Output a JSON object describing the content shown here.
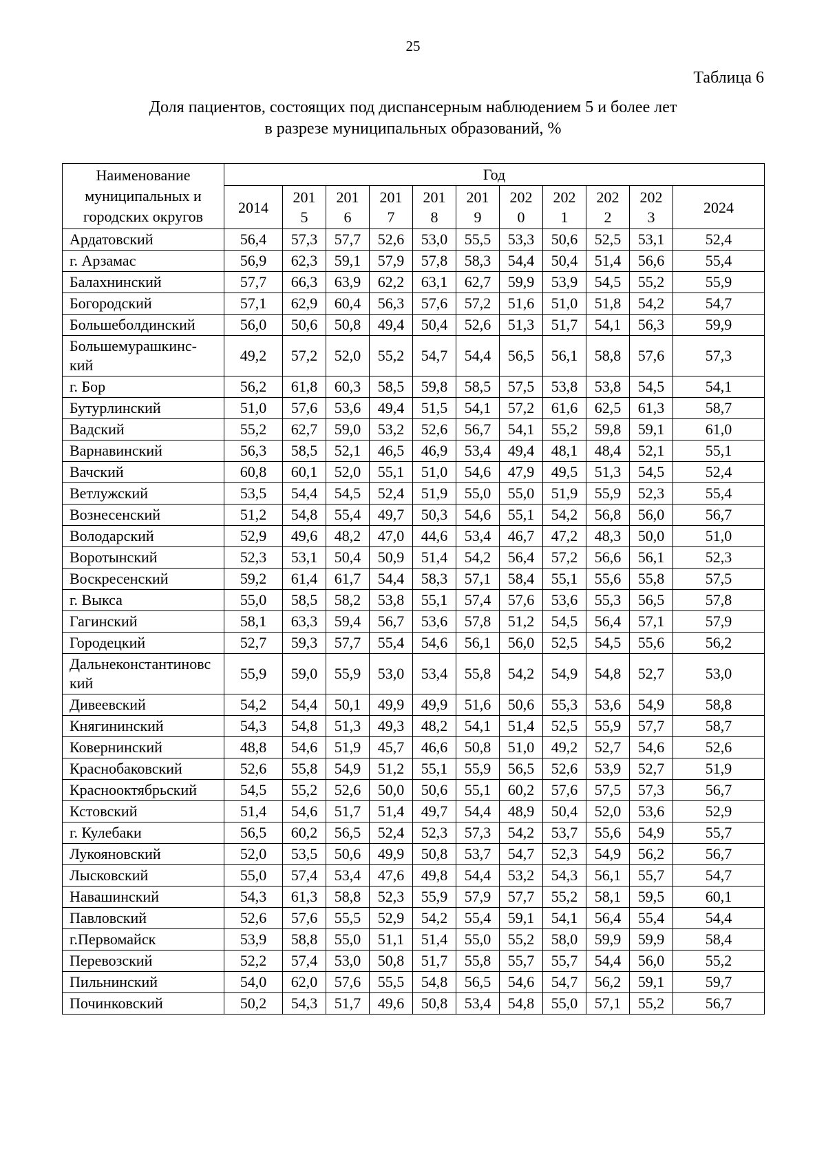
{
  "page": {
    "number": "25",
    "table_label": "Таблица 6",
    "title_line1": "Доля пациентов, состоящих под диспансерным наблюдением 5 и более лет",
    "title_line2": "в разрезе муниципальных образований, %"
  },
  "table": {
    "name_header": "Наименование\nмуниципальных и\nгородских округов",
    "year_header": "Год",
    "year_columns": [
      "2014",
      "201\n5",
      "201\n6",
      "201\n7",
      "201\n8",
      "201\n9",
      "202\n0",
      "202\n1",
      "202\n2",
      "202\n3",
      "2024"
    ],
    "rows": [
      {
        "name": "Ардатовский",
        "values": [
          "56,4",
          "57,3",
          "57,7",
          "52,6",
          "53,0",
          "55,5",
          "53,3",
          "50,6",
          "52,5",
          "53,1",
          "52,4"
        ]
      },
      {
        "name": "г. Арзамас",
        "values": [
          "56,9",
          "62,3",
          "59,1",
          "57,9",
          "57,8",
          "58,3",
          "54,4",
          "50,4",
          "51,4",
          "56,6",
          "55,4"
        ]
      },
      {
        "name": "Балахнинский",
        "values": [
          "57,7",
          "66,3",
          "63,9",
          "62,2",
          "63,1",
          "62,7",
          "59,9",
          "53,9",
          "54,5",
          "55,2",
          "55,9"
        ]
      },
      {
        "name": "Богородский",
        "values": [
          "57,1",
          "62,9",
          "60,4",
          "56,3",
          "57,6",
          "57,2",
          "51,6",
          "51,0",
          "51,8",
          "54,2",
          "54,7"
        ]
      },
      {
        "name": "Большеболдинский",
        "values": [
          "56,0",
          "50,6",
          "50,8",
          "49,4",
          "50,4",
          "52,6",
          "51,3",
          "51,7",
          "54,1",
          "56,3",
          "59,9"
        ]
      },
      {
        "name": "Большемурашкинс-\nкий",
        "values": [
          "49,2",
          "57,2",
          "52,0",
          "55,2",
          "54,7",
          "54,4",
          "56,5",
          "56,1",
          "58,8",
          "57,6",
          "57,3"
        ]
      },
      {
        "name": "г. Бор",
        "values": [
          "56,2",
          "61,8",
          "60,3",
          "58,5",
          "59,8",
          "58,5",
          "57,5",
          "53,8",
          "53,8",
          "54,5",
          "54,1"
        ]
      },
      {
        "name": "Бутурлинский",
        "values": [
          "51,0",
          "57,6",
          "53,6",
          "49,4",
          "51,5",
          "54,1",
          "57,2",
          "61,6",
          "62,5",
          "61,3",
          "58,7"
        ]
      },
      {
        "name": "Вадский",
        "values": [
          "55,2",
          "62,7",
          "59,0",
          "53,2",
          "52,6",
          "56,7",
          "54,1",
          "55,2",
          "59,8",
          "59,1",
          "61,0"
        ]
      },
      {
        "name": "Варнавинский",
        "values": [
          "56,3",
          "58,5",
          "52,1",
          "46,5",
          "46,9",
          "53,4",
          "49,4",
          "48,1",
          "48,4",
          "52,1",
          "55,1"
        ]
      },
      {
        "name": "Вачский",
        "values": [
          "60,8",
          "60,1",
          "52,0",
          "55,1",
          "51,0",
          "54,6",
          "47,9",
          "49,5",
          "51,3",
          "54,5",
          "52,4"
        ]
      },
      {
        "name": "Ветлужский",
        "values": [
          "53,5",
          "54,4",
          "54,5",
          "52,4",
          "51,9",
          "55,0",
          "55,0",
          "51,9",
          "55,9",
          "52,3",
          "55,4"
        ]
      },
      {
        "name": "Вознесенский",
        "values": [
          "51,2",
          "54,8",
          "55,4",
          "49,7",
          "50,3",
          "54,6",
          "55,1",
          "54,2",
          "56,8",
          "56,0",
          "56,7"
        ]
      },
      {
        "name": "Володарский",
        "values": [
          "52,9",
          "49,6",
          "48,2",
          "47,0",
          "44,6",
          "53,4",
          "46,7",
          "47,2",
          "48,3",
          "50,0",
          "51,0"
        ]
      },
      {
        "name": "Воротынский",
        "values": [
          "52,3",
          "53,1",
          "50,4",
          "50,9",
          "51,4",
          "54,2",
          "56,4",
          "57,2",
          "56,6",
          "56,1",
          "52,3"
        ]
      },
      {
        "name": "Воскресенский",
        "values": [
          "59,2",
          "61,4",
          "61,7",
          "54,4",
          "58,3",
          "57,1",
          "58,4",
          "55,1",
          "55,6",
          "55,8",
          "57,5"
        ]
      },
      {
        "name": "г. Выкса",
        "values": [
          "55,0",
          "58,5",
          "58,2",
          "53,8",
          "55,1",
          "57,4",
          "57,6",
          "53,6",
          "55,3",
          "56,5",
          "57,8"
        ]
      },
      {
        "name": "Гагинский",
        "values": [
          "58,1",
          "63,3",
          "59,4",
          "56,7",
          "53,6",
          "57,8",
          "51,2",
          "54,5",
          "56,4",
          "57,1",
          "57,9"
        ]
      },
      {
        "name": "Городецкий",
        "values": [
          "52,7",
          "59,3",
          "57,7",
          "55,4",
          "54,6",
          "56,1",
          "56,0",
          "52,5",
          "54,5",
          "55,6",
          "56,2"
        ]
      },
      {
        "name": "Дальнеконстантиновс\nкий",
        "values": [
          "55,9",
          "59,0",
          "55,9",
          "53,0",
          "53,4",
          "55,8",
          "54,2",
          "54,9",
          "54,8",
          "52,7",
          "53,0"
        ]
      },
      {
        "name": "Дивеевский",
        "values": [
          "54,2",
          "54,4",
          "50,1",
          "49,9",
          "49,9",
          "51,6",
          "50,6",
          "55,3",
          "53,6",
          "54,9",
          "58,8"
        ]
      },
      {
        "name": "Княгининский",
        "values": [
          "54,3",
          "54,8",
          "51,3",
          "49,3",
          "48,2",
          "54,1",
          "51,4",
          "52,5",
          "55,9",
          "57,7",
          "58,7"
        ]
      },
      {
        "name": "Ковернинский",
        "values": [
          "48,8",
          "54,6",
          "51,9",
          "45,7",
          "46,6",
          "50,8",
          "51,0",
          "49,2",
          "52,7",
          "54,6",
          "52,6"
        ]
      },
      {
        "name": "Краснобаковский",
        "values": [
          "52,6",
          "55,8",
          "54,9",
          "51,2",
          "55,1",
          "55,9",
          "56,5",
          "52,6",
          "53,9",
          "52,7",
          "51,9"
        ]
      },
      {
        "name": "Краснооктябрьский",
        "values": [
          "54,5",
          "55,2",
          "52,6",
          "50,0",
          "50,6",
          "55,1",
          "60,2",
          "57,6",
          "57,5",
          "57,3",
          "56,7"
        ]
      },
      {
        "name": "Кстовский",
        "values": [
          "51,4",
          "54,6",
          "51,7",
          "51,4",
          "49,7",
          "54,4",
          "48,9",
          "50,4",
          "52,0",
          "53,6",
          "52,9"
        ]
      },
      {
        "name": "г. Кулебаки",
        "values": [
          "56,5",
          "60,2",
          "56,5",
          "52,4",
          "52,3",
          "57,3",
          "54,2",
          "53,7",
          "55,6",
          "54,9",
          "55,7"
        ]
      },
      {
        "name": "Лукояновский",
        "values": [
          "52,0",
          "53,5",
          "50,6",
          "49,9",
          "50,8",
          "53,7",
          "54,7",
          "52,3",
          "54,9",
          "56,2",
          "56,7"
        ]
      },
      {
        "name": "Лысковский",
        "values": [
          "55,0",
          "57,4",
          "53,4",
          "47,6",
          "49,8",
          "54,4",
          "53,2",
          "54,3",
          "56,1",
          "55,7",
          "54,7"
        ]
      },
      {
        "name": "Навашинский",
        "values": [
          "54,3",
          "61,3",
          "58,8",
          "52,3",
          "55,9",
          "57,9",
          "57,7",
          "55,2",
          "58,1",
          "59,5",
          "60,1"
        ]
      },
      {
        "name": "Павловский",
        "values": [
          "52,6",
          "57,6",
          "55,5",
          "52,9",
          "54,2",
          "55,4",
          "59,1",
          "54,1",
          "56,4",
          "55,4",
          "54,4"
        ]
      },
      {
        "name": "г.Первомайск",
        "values": [
          "53,9",
          "58,8",
          "55,0",
          "51,1",
          "51,4",
          "55,0",
          "55,2",
          "58,0",
          "59,9",
          "59,9",
          "58,4"
        ]
      },
      {
        "name": "Перевозский",
        "values": [
          "52,2",
          "57,4",
          "53,0",
          "50,8",
          "51,7",
          "55,8",
          "55,7",
          "55,7",
          "54,4",
          "56,0",
          "55,2"
        ]
      },
      {
        "name": "Пильнинский",
        "values": [
          "54,0",
          "62,0",
          "57,6",
          "55,5",
          "54,8",
          "56,5",
          "54,6",
          "54,7",
          "56,2",
          "59,1",
          "59,7"
        ]
      },
      {
        "name": "Починковский",
        "values": [
          "50,2",
          "54,3",
          "51,7",
          "49,6",
          "50,8",
          "53,4",
          "54,8",
          "55,0",
          "57,1",
          "55,2",
          "56,7"
        ]
      }
    ]
  }
}
